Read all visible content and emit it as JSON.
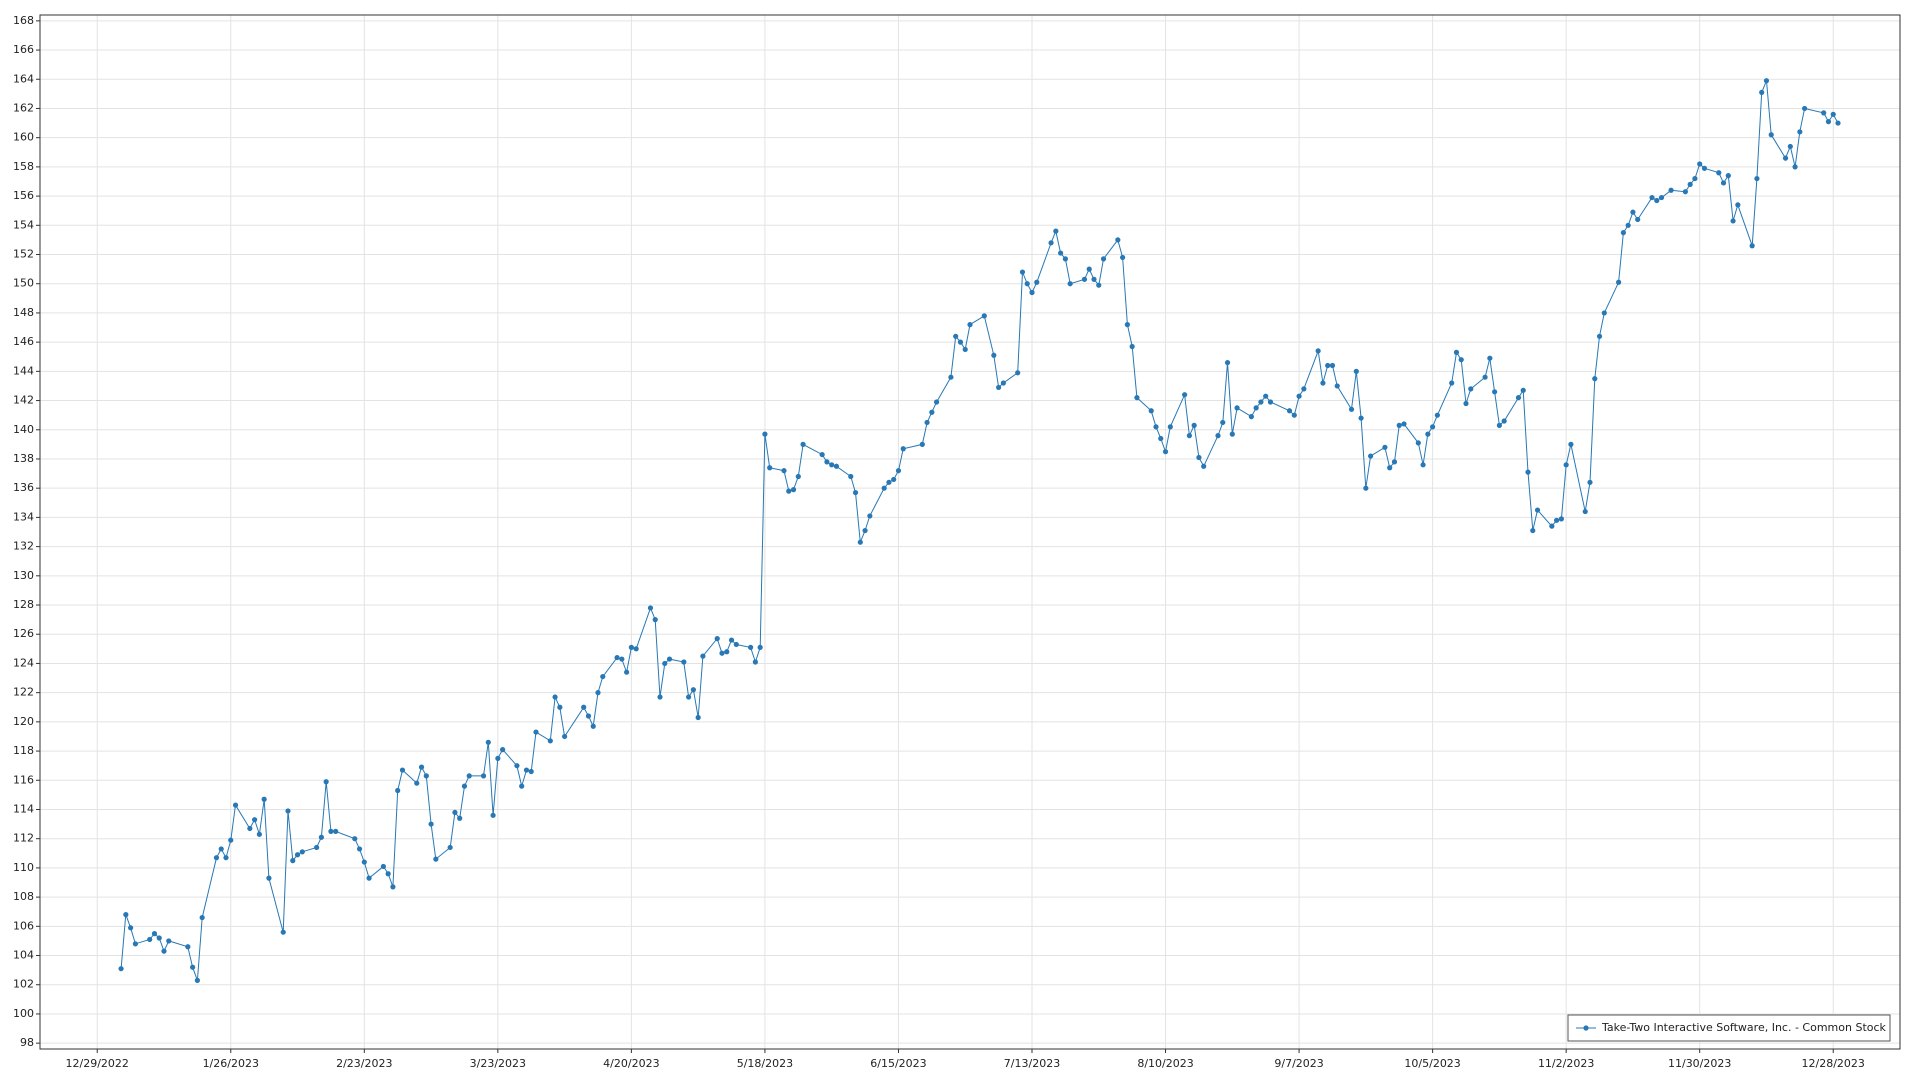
{
  "chart_data": {
    "type": "line",
    "x": [
      "1/3/2023",
      "1/4/2023",
      "1/5/2023",
      "1/6/2023",
      "1/9/2023",
      "1/10/2023",
      "1/11/2023",
      "1/12/2023",
      "1/13/2023",
      "1/17/2023",
      "1/18/2023",
      "1/19/2023",
      "1/20/2023",
      "1/23/2023",
      "1/24/2023",
      "1/25/2023",
      "1/26/2023",
      "1/27/2023",
      "1/30/2023",
      "1/31/2023",
      "2/1/2023",
      "2/2/2023",
      "2/3/2023",
      "2/6/2023",
      "2/7/2023",
      "2/8/2023",
      "2/9/2023",
      "2/10/2023",
      "2/13/2023",
      "2/14/2023",
      "2/15/2023",
      "2/16/2023",
      "2/17/2023",
      "2/21/2023",
      "2/22/2023",
      "2/23/2023",
      "2/24/2023",
      "2/27/2023",
      "2/28/2023",
      "3/1/2023",
      "3/2/2023",
      "3/3/2023",
      "3/6/2023",
      "3/7/2023",
      "3/8/2023",
      "3/9/2023",
      "3/10/2023",
      "3/13/2023",
      "3/14/2023",
      "3/15/2023",
      "3/16/2023",
      "3/17/2023",
      "3/20/2023",
      "3/21/2023",
      "3/22/2023",
      "3/23/2023",
      "3/24/2023",
      "3/27/2023",
      "3/28/2023",
      "3/29/2023",
      "3/30/2023",
      "3/31/2023",
      "4/3/2023",
      "4/4/2023",
      "4/5/2023",
      "4/6/2023",
      "4/10/2023",
      "4/11/2023",
      "4/12/2023",
      "4/13/2023",
      "4/14/2023",
      "4/17/2023",
      "4/18/2023",
      "4/19/2023",
      "4/20/2023",
      "4/21/2023",
      "4/24/2023",
      "4/25/2023",
      "4/26/2023",
      "4/27/2023",
      "4/28/2023",
      "5/1/2023",
      "5/2/2023",
      "5/3/2023",
      "5/4/2023",
      "5/5/2023",
      "5/8/2023",
      "5/9/2023",
      "5/10/2023",
      "5/11/2023",
      "5/12/2023",
      "5/15/2023",
      "5/16/2023",
      "5/17/2023",
      "5/18/2023",
      "5/19/2023",
      "5/22/2023",
      "5/23/2023",
      "5/24/2023",
      "5/25/2023",
      "5/26/2023",
      "5/30/2023",
      "5/31/2023",
      "6/1/2023",
      "6/2/2023",
      "6/5/2023",
      "6/6/2023",
      "6/7/2023",
      "6/8/2023",
      "6/9/2023",
      "6/12/2023",
      "6/13/2023",
      "6/14/2023",
      "6/15/2023",
      "6/16/2023",
      "6/20/2023",
      "6/21/2023",
      "6/22/2023",
      "6/23/2023",
      "6/26/2023",
      "6/27/2023",
      "6/28/2023",
      "6/29/2023",
      "6/30/2023",
      "7/3/2023",
      "7/5/2023",
      "7/6/2023",
      "7/7/2023",
      "7/10/2023",
      "7/11/2023",
      "7/12/2023",
      "7/13/2023",
      "7/14/2023",
      "7/17/2023",
      "7/18/2023",
      "7/19/2023",
      "7/20/2023",
      "7/21/2023",
      "7/24/2023",
      "7/25/2023",
      "7/26/2023",
      "7/27/2023",
      "7/28/2023",
      "7/31/2023",
      "8/1/2023",
      "8/2/2023",
      "8/3/2023",
      "8/4/2023",
      "8/7/2023",
      "8/8/2023",
      "8/9/2023",
      "8/10/2023",
      "8/11/2023",
      "8/14/2023",
      "8/15/2023",
      "8/16/2023",
      "8/17/2023",
      "8/18/2023",
      "8/21/2023",
      "8/22/2023",
      "8/23/2023",
      "8/24/2023",
      "8/25/2023",
      "8/28/2023",
      "8/29/2023",
      "8/30/2023",
      "8/31/2023",
      "9/1/2023",
      "9/5/2023",
      "9/6/2023",
      "9/7/2023",
      "9/8/2023",
      "9/11/2023",
      "9/12/2023",
      "9/13/2023",
      "9/14/2023",
      "9/15/2023",
      "9/18/2023",
      "9/19/2023",
      "9/20/2023",
      "9/21/2023",
      "9/22/2023",
      "9/25/2023",
      "9/26/2023",
      "9/27/2023",
      "9/28/2023",
      "9/29/2023",
      "10/2/2023",
      "10/3/2023",
      "10/4/2023",
      "10/5/2023",
      "10/6/2023",
      "10/9/2023",
      "10/10/2023",
      "10/11/2023",
      "10/12/2023",
      "10/13/2023",
      "10/16/2023",
      "10/17/2023",
      "10/18/2023",
      "10/19/2023",
      "10/20/2023",
      "10/23/2023",
      "10/24/2023",
      "10/25/2023",
      "10/26/2023",
      "10/27/2023",
      "10/30/2023",
      "10/31/2023",
      "11/1/2023",
      "11/2/2023",
      "11/3/2023",
      "11/6/2023",
      "11/7/2023",
      "11/8/2023",
      "11/9/2023",
      "11/10/2023",
      "11/13/2023",
      "11/14/2023",
      "11/15/2023",
      "11/16/2023",
      "11/17/2023",
      "11/20/2023",
      "11/21/2023",
      "11/22/2023",
      "11/24/2023",
      "11/27/2023",
      "11/28/2023",
      "11/29/2023",
      "11/30/2023",
      "12/1/2023",
      "12/4/2023",
      "12/5/2023",
      "12/6/2023",
      "12/7/2023",
      "12/8/2023",
      "12/11/2023",
      "12/12/2023",
      "12/13/2023",
      "12/14/2023",
      "12/15/2023",
      "12/18/2023",
      "12/19/2023",
      "12/20/2023",
      "12/21/2023",
      "12/22/2023",
      "12/26/2023",
      "12/27/2023",
      "12/28/2023",
      "12/29/2023"
    ],
    "series": [
      {
        "name": "Take-Two Interactive Software, Inc. - Common Stock",
        "color": "#2878b5",
        "values": [
          103.1,
          106.8,
          105.9,
          104.8,
          105.1,
          105.5,
          105.2,
          104.3,
          105.0,
          104.6,
          103.2,
          102.3,
          106.6,
          110.7,
          111.3,
          110.7,
          111.9,
          114.3,
          112.7,
          113.3,
          112.3,
          114.7,
          109.3,
          105.6,
          113.9,
          110.5,
          110.9,
          111.1,
          111.4,
          112.1,
          115.9,
          112.5,
          112.5,
          112.0,
          111.3,
          110.4,
          109.3,
          110.1,
          109.6,
          108.7,
          115.3,
          116.7,
          115.8,
          116.9,
          116.3,
          113.0,
          110.6,
          111.4,
          113.8,
          113.4,
          115.6,
          116.3,
          116.3,
          118.6,
          113.6,
          117.5,
          118.1,
          117.0,
          115.6,
          116.7,
          116.6,
          119.3,
          118.7,
          121.7,
          121.0,
          119.0,
          121.0,
          120.4,
          119.7,
          122.0,
          123.1,
          124.4,
          124.3,
          123.4,
          125.1,
          125.0,
          127.8,
          127.0,
          121.7,
          124.0,
          124.3,
          124.1,
          121.7,
          122.2,
          120.3,
          124.5,
          125.7,
          124.7,
          124.8,
          125.6,
          125.3,
          125.1,
          124.1,
          125.1,
          139.7,
          137.4,
          137.2,
          135.8,
          135.9,
          136.8,
          139.0,
          138.3,
          137.8,
          137.6,
          137.5,
          136.8,
          135.7,
          132.3,
          133.1,
          134.1,
          136.0,
          136.4,
          136.6,
          137.2,
          138.7,
          139.0,
          140.5,
          141.2,
          141.9,
          143.6,
          146.4,
          146.0,
          145.5,
          147.2,
          147.8,
          145.1,
          142.9,
          143.2,
          143.9,
          150.8,
          150.0,
          149.4,
          150.1,
          152.8,
          153.6,
          152.1,
          151.7,
          150.0,
          150.3,
          151.0,
          150.3,
          149.9,
          151.7,
          153.0,
          151.8,
          147.2,
          145.7,
          142.2,
          141.3,
          140.2,
          139.4,
          138.5,
          140.2,
          142.4,
          139.6,
          140.3,
          138.1,
          137.5,
          139.6,
          140.5,
          144.6,
          139.7,
          141.5,
          140.9,
          141.5,
          141.9,
          142.3,
          141.9,
          141.3,
          141.0,
          142.3,
          142.8,
          145.4,
          143.2,
          144.4,
          144.4,
          143.0,
          141.4,
          144.0,
          140.8,
          136.0,
          138.2,
          138.8,
          137.4,
          137.8,
          140.3,
          140.4,
          139.1,
          137.6,
          139.7,
          140.2,
          141.0,
          143.2,
          145.3,
          144.8,
          141.8,
          142.8,
          143.6,
          144.9,
          142.6,
          140.3,
          140.6,
          142.2,
          142.7,
          137.1,
          133.1,
          134.5,
          133.4,
          133.8,
          133.9,
          137.6,
          139.0,
          134.4,
          136.4,
          143.5,
          146.4,
          148.0,
          150.1,
          153.5,
          154.0,
          154.9,
          154.4,
          155.9,
          155.7,
          155.9,
          156.4,
          156.3,
          156.8,
          157.2,
          158.2,
          157.9,
          157.6,
          156.9,
          157.4,
          154.3,
          155.4,
          152.6,
          157.2,
          163.1,
          163.9,
          160.2,
          158.6,
          159.4,
          158.0,
          160.4,
          162.0,
          161.7,
          161.1,
          161.6,
          161.0
        ]
      }
    ],
    "xlim": [
      "12/17/2022",
      "1/11/2024"
    ],
    "xticks": [
      "12/29/2022",
      "1/26/2023",
      "2/23/2023",
      "3/23/2023",
      "4/20/2023",
      "5/18/2023",
      "6/15/2023",
      "7/13/2023",
      "8/10/2023",
      "9/7/2023",
      "10/5/2023",
      "11/2/2023",
      "11/30/2023",
      "12/28/2023"
    ],
    "ylim": [
      97.6,
      168.4
    ],
    "yticks": [
      98,
      100,
      102,
      104,
      106,
      108,
      110,
      112,
      114,
      116,
      118,
      120,
      122,
      124,
      126,
      128,
      130,
      132,
      134,
      136,
      138,
      140,
      142,
      144,
      146,
      148,
      150,
      152,
      154,
      156,
      158,
      160,
      162,
      164,
      166,
      168
    ],
    "grid": true,
    "legend": "lower right"
  }
}
